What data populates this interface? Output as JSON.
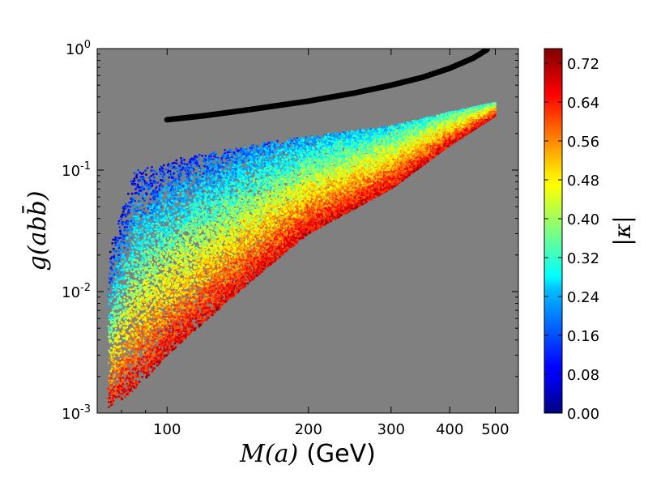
{
  "chart_data": {
    "type": "scatter",
    "background_color": "#808080",
    "x_scale": "log",
    "y_scale": "log",
    "xlim": [
      71,
      560
    ],
    "ylim": [
      0.001,
      1
    ],
    "xlabel_math": "M(a)",
    "xlabel_unit": "(GeV)",
    "ylabel_math": "g(abb̄)",
    "x_ticks": [
      {
        "value": 100,
        "label": "100"
      },
      {
        "value": 200,
        "label": "200"
      },
      {
        "value": 300,
        "label": "300"
      },
      {
        "value": 400,
        "label": "400"
      },
      {
        "value": 500,
        "label": "500"
      }
    ],
    "y_ticks": [
      {
        "value": 1,
        "base": "10",
        "exp": "0"
      },
      {
        "value": 0.1,
        "base": "10",
        "exp": "-1"
      },
      {
        "value": 0.01,
        "base": "10",
        "exp": "-2"
      },
      {
        "value": 0.001,
        "base": "10",
        "exp": "-3"
      }
    ],
    "colorbar": {
      "title": "|κ|",
      "range": [
        0,
        0.75
      ],
      "colormap": "jet",
      "ticks": [
        "0.00",
        "0.08",
        "0.16",
        "0.24",
        "0.32",
        "0.40",
        "0.48",
        "0.56",
        "0.64",
        "0.72"
      ]
    },
    "bound_curve": {
      "name": "upper limit",
      "color": "#000000",
      "x": [
        100,
        120,
        150,
        200,
        250,
        300,
        350,
        400,
        450,
        480
      ],
      "y": [
        0.26,
        0.28,
        0.315,
        0.37,
        0.43,
        0.5,
        0.58,
        0.69,
        0.84,
        0.98
      ]
    },
    "scatter_envelope": {
      "description": "Dense scatter of ~28000 points, colored by |κ|",
      "x_range": [
        75,
        500
      ],
      "y_band_low_high": [
        {
          "x": 75,
          "low": 0.0011,
          "high": 0.02
        },
        {
          "x": 85,
          "low": 0.0015,
          "high": 0.1
        },
        {
          "x": 100,
          "low": 0.003,
          "high": 0.12
        },
        {
          "x": 150,
          "low": 0.012,
          "high": 0.16
        },
        {
          "x": 200,
          "low": 0.03,
          "high": 0.19
        },
        {
          "x": 300,
          "low": 0.07,
          "high": 0.23
        },
        {
          "x": 400,
          "low": 0.16,
          "high": 0.3
        },
        {
          "x": 500,
          "low": 0.28,
          "high": 0.36
        }
      ],
      "kappa_trend": "high |κ| (red) near lower edge, low |κ| (blue) near upper edge at low mass"
    }
  }
}
